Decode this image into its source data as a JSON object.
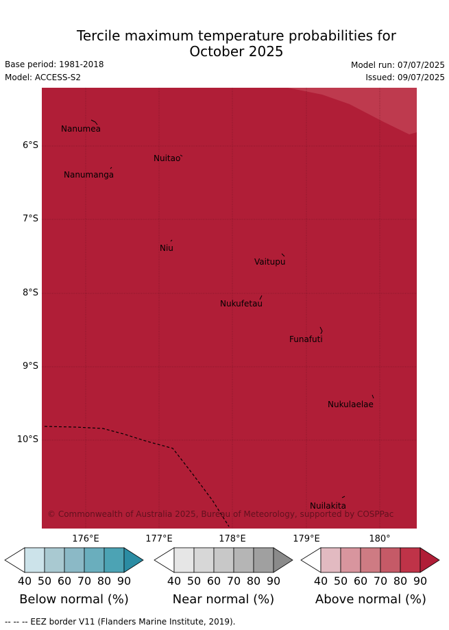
{
  "title": {
    "line1": "Tercile maximum temperature probabilities for",
    "line2": "October 2025"
  },
  "meta": {
    "base_period": "Base period: 1981-2018",
    "model": "Model: ACCESS-S2",
    "model_run": "Model run: 07/07/2025",
    "issued": "Issued: 09/07/2025"
  },
  "map": {
    "fill_color": "#b01e37",
    "corner_color": "#be3a4e",
    "latitude_labels": [
      "6°S",
      "7°S",
      "8°S",
      "9°S",
      "10°S"
    ],
    "longitude_labels": [
      "176°E",
      "177°E",
      "178°E",
      "179°E",
      "180°"
    ],
    "places": [
      "Nanumea",
      "Nuitao",
      "Nanumanga",
      "Niu",
      "Vaitupu",
      "Nukufetau",
      "Funafuti",
      "Nukulaelae",
      "Nuilakita"
    ],
    "copyright": "© Commonwealth of Australia 2025, Bureau of Meteorology, supported by COSPPac"
  },
  "colorbars": {
    "ticks": [
      "40",
      "50",
      "60",
      "70",
      "80",
      "90"
    ],
    "below": {
      "label": "Below normal (%)",
      "colors": [
        "#cce3ea",
        "#a9c9d1",
        "#8bb9c6",
        "#6aaebd",
        "#4ca3b4",
        "#2b8ca3"
      ]
    },
    "near": {
      "label": "Near normal (%)",
      "colors": [
        "#e6e6e6",
        "#d7d7d7",
        "#c8c8c8",
        "#b5b5b5",
        "#a0a0a0",
        "#8a8a8a"
      ]
    },
    "above": {
      "label": "Above normal (%)",
      "colors": [
        "#e2bac1",
        "#d8959e",
        "#ce7b83",
        "#c55a67",
        "#bf3348",
        "#b01e37"
      ]
    }
  },
  "footer": {
    "eez_note": "--  --  -- EEZ border V11 (Flanders Marine Institute, 2019)."
  }
}
